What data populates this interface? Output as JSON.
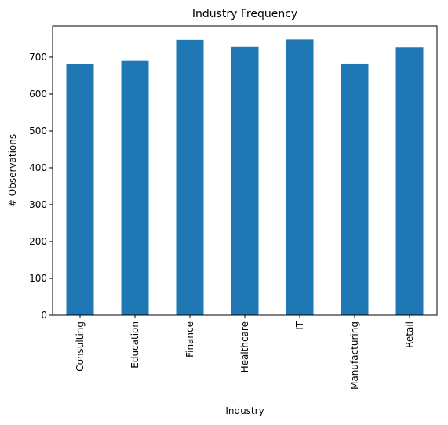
{
  "chart_data": {
    "type": "bar",
    "title": "Industry Frequency",
    "xlabel": "Industry",
    "ylabel": "# Observations",
    "categories": [
      "Consulting",
      "Education",
      "Finance",
      "Healthcare",
      "IT",
      "Manufacturing",
      "Retail"
    ],
    "values": [
      681,
      690,
      747,
      728,
      748,
      683,
      727
    ],
    "ylim": [
      0,
      785
    ],
    "yticks": [
      0,
      100,
      200,
      300,
      400,
      500,
      600,
      700
    ],
    "bar_color": "#1f77b4",
    "grid": false,
    "legend": "none"
  }
}
